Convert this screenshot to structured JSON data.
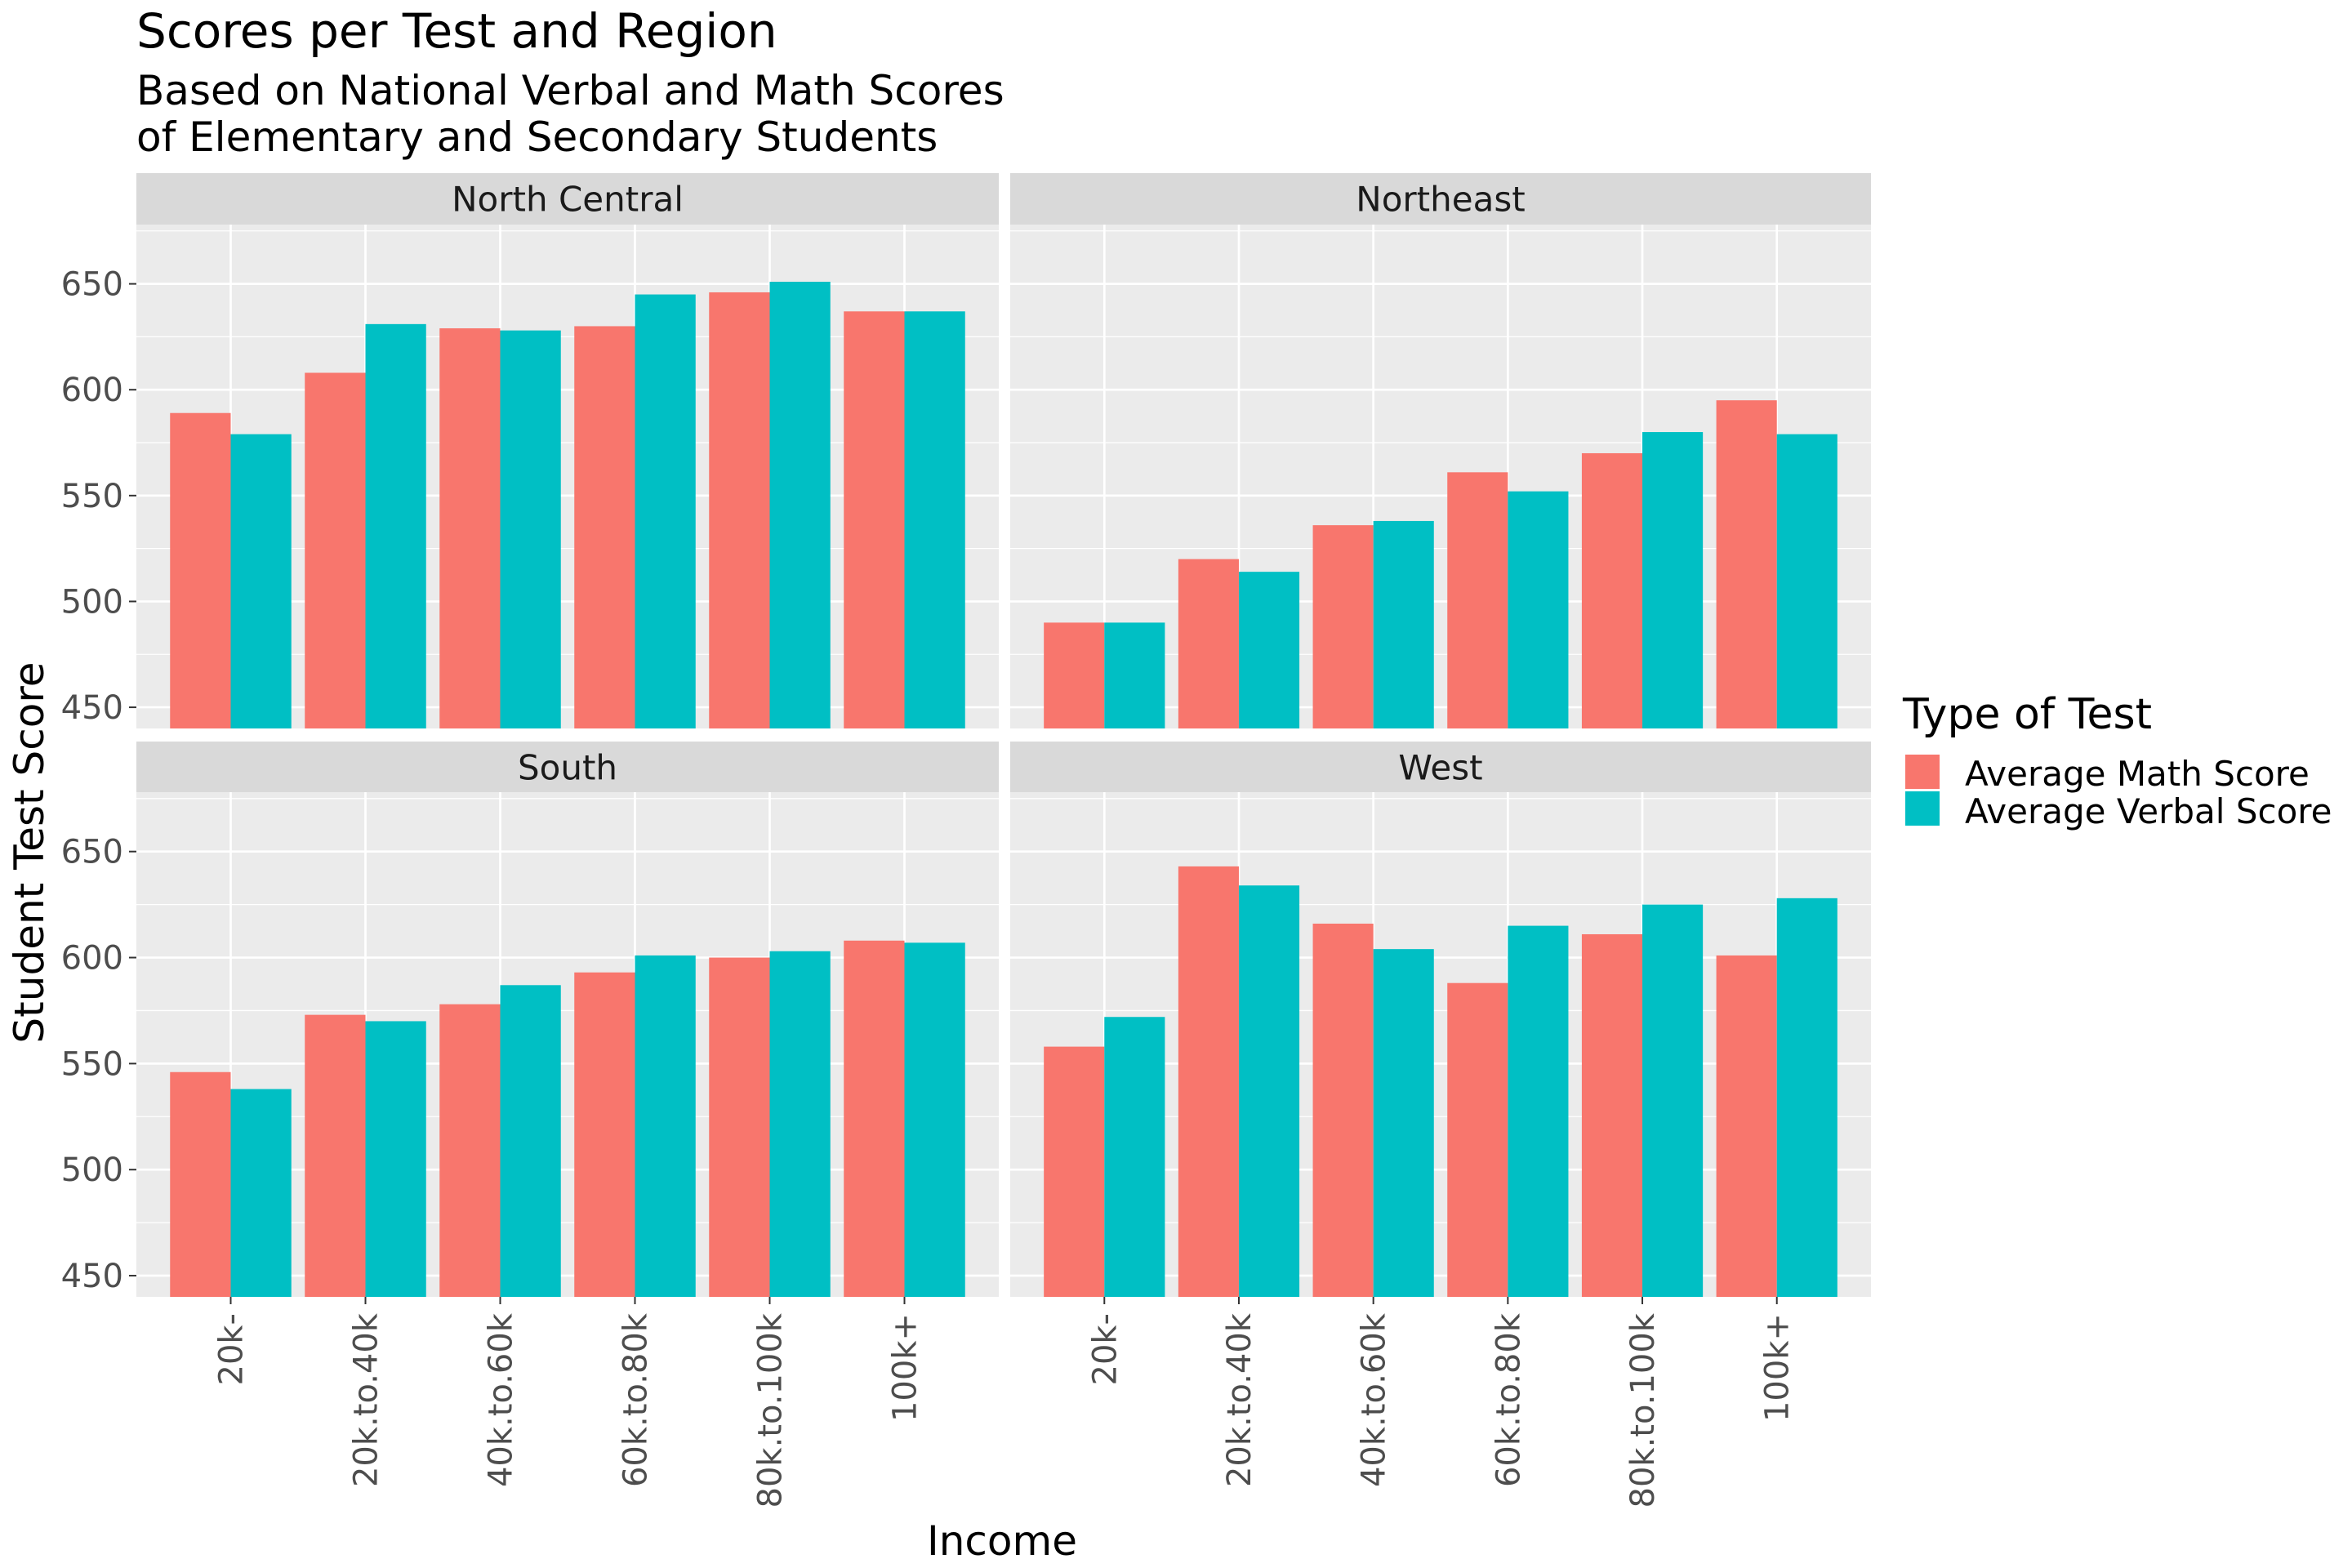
{
  "chart_data": {
    "type": "bar",
    "title": "Scores per Test and Region",
    "subtitle_lines": [
      "Based on National Verbal and Math Scores",
      "of Elementary and Secondary Students"
    ],
    "xlabel": "Income",
    "ylabel": "Student Test Score",
    "categories": [
      "20k-",
      "20k.to.40k",
      "40k.to.60k",
      "60k.to.80k",
      "80k.to.100k",
      "100k+"
    ],
    "yticks": [
      450,
      500,
      550,
      600,
      650
    ],
    "ylim": [
      440,
      678
    ],
    "grid": true,
    "legend": {
      "title": "Type of Test",
      "position": "right",
      "entries": [
        {
          "label": "Average Math Score",
          "color": "#F8766D"
        },
        {
          "label": "Average Verbal Score",
          "color": "#00BFC4"
        }
      ]
    },
    "facets": [
      {
        "name": "North Central",
        "series": [
          {
            "name": "Average Math Score",
            "values": [
              589,
              608,
              629,
              630,
              646,
              637
            ]
          },
          {
            "name": "Average Verbal Score",
            "values": [
              579,
              631,
              628,
              645,
              651,
              637
            ]
          }
        ]
      },
      {
        "name": "Northeast",
        "series": [
          {
            "name": "Average Math Score",
            "values": [
              490,
              520,
              536,
              561,
              570,
              595
            ]
          },
          {
            "name": "Average Verbal Score",
            "values": [
              490,
              514,
              538,
              552,
              580,
              579
            ]
          }
        ]
      },
      {
        "name": "South",
        "series": [
          {
            "name": "Average Math Score",
            "values": [
              546,
              573,
              578,
              593,
              600,
              608
            ]
          },
          {
            "name": "Average Verbal Score",
            "values": [
              538,
              570,
              587,
              601,
              603,
              607
            ]
          }
        ]
      },
      {
        "name": "West",
        "series": [
          {
            "name": "Average Math Score",
            "values": [
              558,
              643,
              616,
              588,
              611,
              601
            ]
          },
          {
            "name": "Average Verbal Score",
            "values": [
              572,
              634,
              604,
              615,
              625,
              628
            ]
          }
        ]
      }
    ]
  }
}
